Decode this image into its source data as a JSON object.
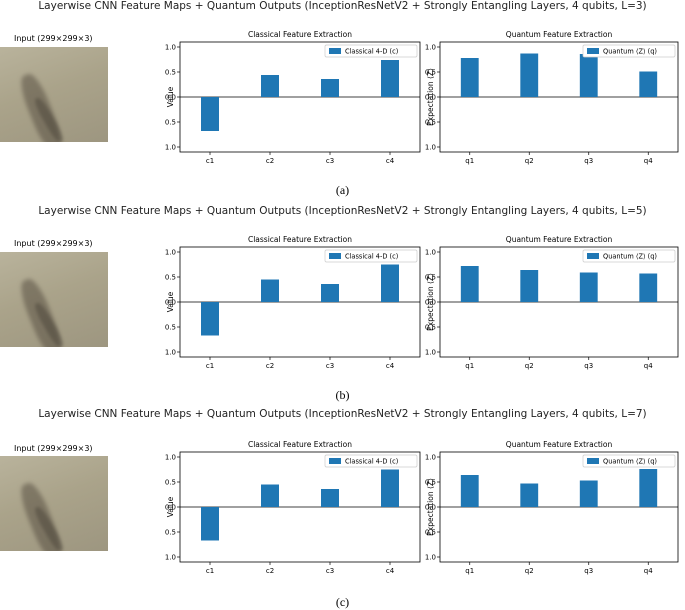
{
  "panels": [
    {
      "suptitle": "Layerwise CNN Feature Maps + Quantum Outputs (InceptionResNetV2 + Strongly Entangling Layers, 4 qubits, L=3)",
      "input_title": "Input (299×299×3)",
      "caption": "(a)"
    },
    {
      "suptitle": "Layerwise CNN Feature Maps + Quantum Outputs (InceptionResNetV2 + Strongly Entangling Layers, 4 qubits, L=5)",
      "input_title": "Input (299×299×3)",
      "caption": "(b)"
    },
    {
      "suptitle": "Layerwise CNN Feature Maps + Quantum Outputs (InceptionResNetV2 + Strongly Entangling Layers, 4 qubits, L=7)",
      "input_title": "Input (299×299×3)",
      "caption": "(c)"
    }
  ],
  "chart_data": [
    {
      "type": "bar",
      "title": "Classical Feature Extraction",
      "ylabel": "Value",
      "xlabel": "",
      "categories": [
        "c1",
        "c2",
        "c3",
        "c4"
      ],
      "series": [
        {
          "name": "Classical 4-D (c)",
          "values": [
            -0.68,
            0.44,
            0.36,
            0.74
          ]
        }
      ],
      "ylim": [
        -1.1,
        1.1
      ],
      "yticks": [
        "1.0",
        "0.5",
        "0.0",
        "-0.5",
        "-1.0"
      ],
      "legend": "top-right",
      "color": "#1f77b4"
    },
    {
      "type": "bar",
      "title": "Quantum Feature Extraction",
      "ylabel": "Expectation ⟨Z⟩",
      "xlabel": "",
      "categories": [
        "q1",
        "q2",
        "q3",
        "q4"
      ],
      "series": [
        {
          "name": "Quantum ⟨Z⟩ (q)",
          "values": [
            0.78,
            0.87,
            0.86,
            0.51
          ]
        }
      ],
      "ylim": [
        -1.1,
        1.1
      ],
      "yticks": [
        "1.0",
        "0.5",
        "0.0",
        "-0.5",
        "-1.0"
      ],
      "legend": "top-right",
      "color": "#1f77b4"
    },
    {
      "type": "bar",
      "title": "Classical Feature Extraction",
      "ylabel": "Value",
      "xlabel": "",
      "categories": [
        "c1",
        "c2",
        "c3",
        "c4"
      ],
      "series": [
        {
          "name": "Classical 4-D (c)",
          "values": [
            -0.67,
            0.45,
            0.36,
            0.75
          ]
        }
      ],
      "ylim": [
        -1.1,
        1.1
      ],
      "yticks": [
        "1.0",
        "0.5",
        "0.0",
        "-0.5",
        "-1.0"
      ],
      "legend": "top-right",
      "color": "#1f77b4"
    },
    {
      "type": "bar",
      "title": "Quantum Feature Extraction",
      "ylabel": "Expectation ⟨Z⟩",
      "xlabel": "",
      "categories": [
        "q1",
        "q2",
        "q3",
        "q4"
      ],
      "series": [
        {
          "name": "Quantum ⟨Z⟩ (q)",
          "values": [
            0.72,
            0.64,
            0.59,
            0.57
          ]
        }
      ],
      "ylim": [
        -1.1,
        1.1
      ],
      "yticks": [
        "1.0",
        "0.5",
        "0.0",
        "-0.5",
        "-1.0"
      ],
      "legend": "top-right",
      "color": "#1f77b4"
    },
    {
      "type": "bar",
      "title": "Classical Feature Extraction",
      "ylabel": "Value",
      "xlabel": "",
      "categories": [
        "c1",
        "c2",
        "c3",
        "c4"
      ],
      "series": [
        {
          "name": "Classical 4-D (c)",
          "values": [
            -0.67,
            0.45,
            0.36,
            0.75
          ]
        }
      ],
      "ylim": [
        -1.1,
        1.1
      ],
      "yticks": [
        "1.0",
        "0.5",
        "0.0",
        "-0.5",
        "-1.0"
      ],
      "legend": "top-right",
      "color": "#1f77b4"
    },
    {
      "type": "bar",
      "title": "Quantum Feature Extraction",
      "ylabel": "Expectation ⟨Z⟩",
      "xlabel": "",
      "categories": [
        "q1",
        "q2",
        "q3",
        "q4"
      ],
      "series": [
        {
          "name": "Quantum ⟨Z⟩ (q)",
          "values": [
            0.64,
            0.47,
            0.53,
            0.76
          ]
        }
      ],
      "ylim": [
        -1.1,
        1.1
      ],
      "yticks": [
        "1.0",
        "0.5",
        "0.0",
        "-0.5",
        "-1.0"
      ],
      "legend": "top-right",
      "color": "#1f77b4"
    }
  ]
}
